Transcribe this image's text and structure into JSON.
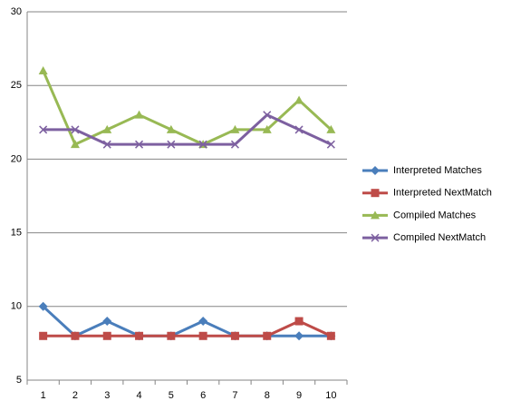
{
  "chart_data": {
    "type": "line",
    "categories": [
      1,
      2,
      3,
      4,
      5,
      6,
      7,
      8,
      9,
      10
    ],
    "series": [
      {
        "name": "Interpreted Matches",
        "color": "#4a7ebb",
        "marker": "diamond",
        "values": [
          10,
          8,
          9,
          8,
          8,
          9,
          8,
          8,
          8,
          8
        ]
      },
      {
        "name": "Interpreted NextMatch",
        "color": "#be4b48",
        "marker": "square",
        "values": [
          8,
          8,
          8,
          8,
          8,
          8,
          8,
          8,
          9,
          8
        ]
      },
      {
        "name": "Compiled Matches",
        "color": "#98b954",
        "marker": "triangle",
        "values": [
          26,
          21,
          22,
          23,
          22,
          21,
          22,
          22,
          24,
          22
        ]
      },
      {
        "name": "Compiled NextMatch",
        "color": "#7d60a0",
        "marker": "x",
        "values": [
          22,
          22,
          21,
          21,
          21,
          21,
          21,
          23,
          22,
          21
        ]
      }
    ],
    "ylim": [
      5,
      30
    ],
    "yticks": [
      5,
      10,
      15,
      20,
      25,
      30
    ],
    "grid": true,
    "legend": "right"
  }
}
